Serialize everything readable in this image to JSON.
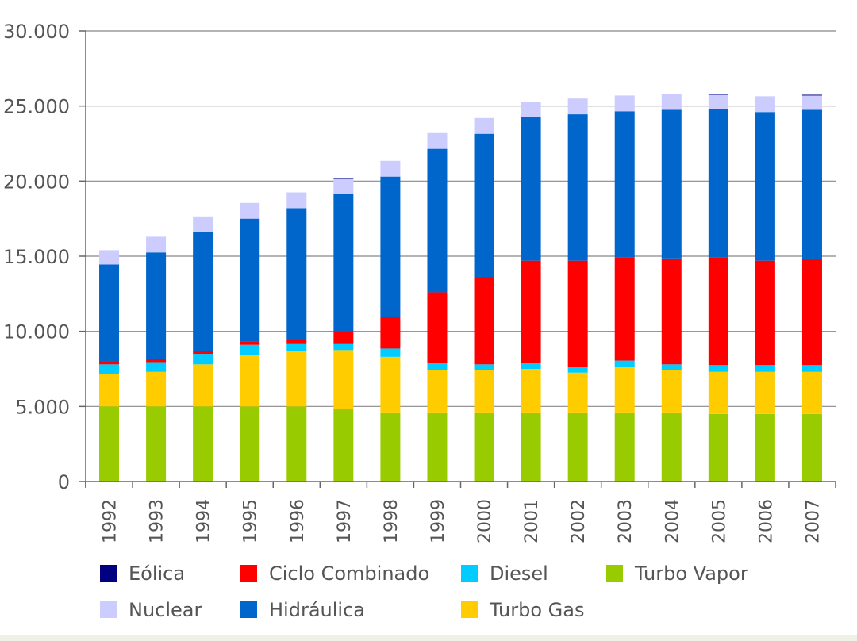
{
  "chart_data": {
    "type": "bar",
    "stacked": true,
    "categories": [
      "1992",
      "1993",
      "1994",
      "1995",
      "1996",
      "1997",
      "1998",
      "1999",
      "2000",
      "2001",
      "2002",
      "2003",
      "2004",
      "2005",
      "2006",
      "2007"
    ],
    "ylim": [
      0,
      30000
    ],
    "yticks": [
      0,
      5000,
      10000,
      15000,
      20000,
      25000,
      30000
    ],
    "ytick_labels": [
      "0",
      "5.000",
      "10.000",
      "15.000",
      "20.000",
      "25.000",
      "30.000"
    ],
    "grid": true,
    "legend_position": "bottom",
    "series": [
      {
        "name": "Turbo Vapor",
        "color": "#99cc00",
        "values": [
          5000,
          5000,
          5000,
          5000,
          5000,
          4850,
          4600,
          4600,
          4600,
          4600,
          4600,
          4600,
          4600,
          4500,
          4500,
          4500
        ]
      },
      {
        "name": "Turbo Gas",
        "color": "#ffcc00",
        "values": [
          2150,
          2300,
          2800,
          3450,
          3700,
          3900,
          3700,
          2800,
          2800,
          2900,
          2650,
          3050,
          2800,
          2800,
          2800,
          2800
        ]
      },
      {
        "name": "Diesel",
        "color": "#00ccff",
        "values": [
          650,
          650,
          700,
          650,
          500,
          450,
          550,
          500,
          400,
          400,
          400,
          400,
          400,
          450,
          450,
          450
        ]
      },
      {
        "name": "Ciclo Combinado",
        "color": "#ff0000",
        "values": [
          200,
          200,
          200,
          200,
          250,
          750,
          2100,
          4700,
          5800,
          6800,
          7050,
          6850,
          7050,
          7150,
          6950,
          7050
        ]
      },
      {
        "name": "Hidráulica",
        "color": "#0066cc",
        "values": [
          6450,
          7100,
          7900,
          8200,
          8750,
          9200,
          9350,
          9550,
          9550,
          9550,
          9750,
          9750,
          9900,
          9900,
          9900,
          9950
        ]
      },
      {
        "name": "Nuclear",
        "color": "#ccccff",
        "values": [
          950,
          1050,
          1050,
          1050,
          1050,
          1000,
          1050,
          1050,
          1050,
          1050,
          1050,
          1050,
          1050,
          950,
          1050,
          950
        ]
      },
      {
        "name": "Eólica",
        "color": "#000080",
        "values": [
          0,
          0,
          0,
          0,
          0,
          50,
          0,
          0,
          0,
          0,
          0,
          0,
          0,
          50,
          0,
          50
        ]
      }
    ]
  },
  "legend": [
    {
      "label": "Eólica",
      "color": "#000080"
    },
    {
      "label": "Ciclo Combinado",
      "color": "#ff0000"
    },
    {
      "label": "Diesel",
      "color": "#00ccff"
    },
    {
      "label": "Turbo Vapor",
      "color": "#99cc00"
    },
    {
      "label": "Nuclear",
      "color": "#ccccff"
    },
    {
      "label": "Hidráulica",
      "color": "#0066cc"
    },
    {
      "label": "Turbo Gas",
      "color": "#ffcc00"
    }
  ]
}
